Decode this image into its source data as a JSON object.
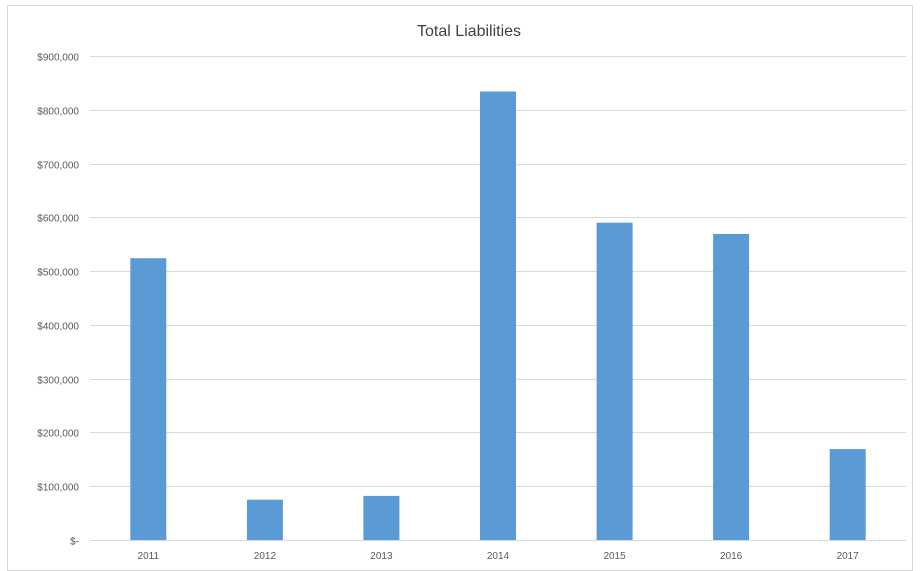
{
  "chart_data": {
    "type": "bar",
    "title": "Total Liabilities",
    "xlabel": "",
    "ylabel": "",
    "categories": [
      "2011",
      "2012",
      "2013",
      "2014",
      "2015",
      "2016",
      "2017"
    ],
    "values": [
      524000,
      75000,
      82000,
      834000,
      590000,
      569000,
      169000
    ],
    "ylim": [
      0,
      900000
    ],
    "yticks": [
      0,
      100000,
      200000,
      300000,
      400000,
      500000,
      600000,
      700000,
      800000,
      900000
    ],
    "ytick_labels": [
      "$-",
      "$100,000",
      "$200,000",
      "$300,000",
      "$400,000",
      "$500,000",
      "$600,000",
      "$700,000",
      "$800,000",
      "$900,000"
    ],
    "grid": true,
    "legend": "none",
    "bar_color": "#5b9bd5"
  }
}
